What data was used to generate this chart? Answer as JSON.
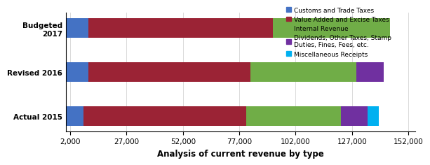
{
  "categories": [
    "Actual 2015",
    "Revised 2016",
    "Budgeted\n2017"
  ],
  "segments": {
    "Customs and Trade Taxes": [
      8000,
      10000,
      10000
    ],
    "Value Added and Excise Taxes": [
      72000,
      72000,
      82000
    ],
    "Internal Revenue": [
      42000,
      47000,
      52000
    ],
    "Dividends, Other Taxes, Stamp\nDuties, Fines, Fees, etc.": [
      12000,
      12000,
      0
    ],
    "Miscellaneous Receipts": [
      5000,
      0,
      0
    ]
  },
  "colors": {
    "Customs and Trade Taxes": "#4472C4",
    "Value Added and Excise Taxes": "#9B2335",
    "Internal Revenue": "#70AD47",
    "Dividends, Other Taxes, Stamp\nDuties, Fines, Fees, etc.": "#7030A0",
    "Miscellaneous Receipts": "#00B0F0"
  },
  "legend_labels": [
    "Customs and Trade Taxes",
    "Value Added and Excise Taxes",
    "Internal Revenue",
    "Dividends, Other Taxes, Stamp\nDuties, Fines, Fees, etc.",
    "Miscellaneous Receipts"
  ],
  "legend_display": [
    "Customs and Trade Taxes",
    "Value Added and Excise Taxes",
    "Internal Revenue",
    "Dividends, Other Taxes, Stamp\nDuties, Fines, Fees, etc.",
    "Miscellaneous Receipts"
  ],
  "xlabel": "Analysis of current revenue by type",
  "xlim": [
    0,
    155000
  ],
  "xticks": [
    2000,
    27000,
    52000,
    77000,
    102000,
    127000,
    152000
  ],
  "background_color": "#FFFFFF",
  "bar_height": 0.45,
  "tick_fontsize": 7.5
}
